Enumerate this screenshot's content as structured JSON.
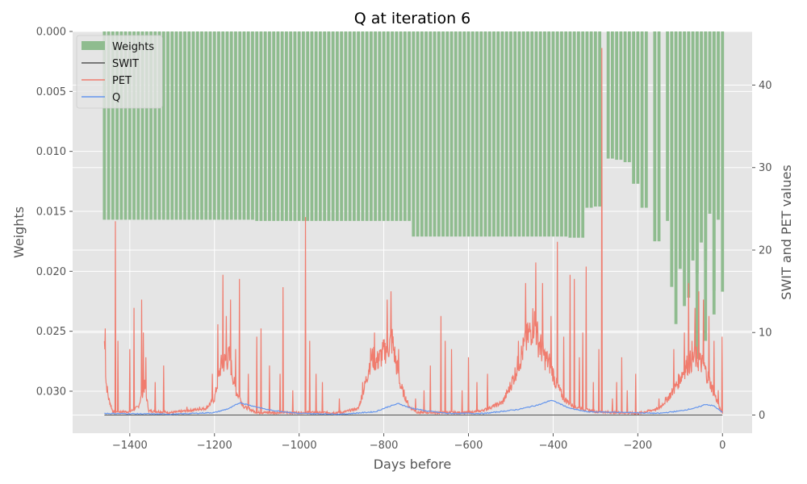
{
  "chart_data": {
    "type": "bar+line",
    "title": "Q at iteration 6",
    "xlabel": "Days before",
    "ylabel_left": "Weights",
    "ylabel_right": "SWIT and PET values",
    "xlim": [
      -1535,
      70
    ],
    "ylim_left": [
      0.0,
      0.0335
    ],
    "ylim_left_inverted": true,
    "ylim_right": [
      -2.2,
      46.5
    ],
    "x_ticks": [
      -1400,
      -1200,
      -1000,
      -800,
      -600,
      -400,
      -200,
      0
    ],
    "y_left_ticks": [
      0.0,
      0.005,
      0.01,
      0.015,
      0.02,
      0.025,
      0.03
    ],
    "y_left_tick_labels": [
      "0.000",
      "0.005",
      "0.010",
      "0.015",
      "0.020",
      "0.025",
      "0.030"
    ],
    "y_right_ticks": [
      0,
      10,
      20,
      30,
      40
    ],
    "grid": true,
    "legend_position": "top-left",
    "legend": [
      "Weights",
      "SWIT",
      "PET",
      "Q"
    ],
    "colors": {
      "background": "#e5e5e5",
      "grid": "#ffffff",
      "weights": "#8fbc8f",
      "swit": "#555555",
      "pet": "#f07c6e",
      "q": "#6495ed"
    },
    "series": [
      {
        "name": "Weights",
        "kind": "bar",
        "axis": "left",
        "note_x": "bar left edge in days; width 10 days",
        "segments": [
          {
            "x_start": -1460,
            "x_end": -1100,
            "value": 0.0157
          },
          {
            "x_start": -1100,
            "x_end": -730,
            "value": 0.0158
          },
          {
            "x_start": -730,
            "x_end": -360,
            "value": 0.0171
          },
          {
            "x_start": -360,
            "x_end": -320,
            "value": 0.0172
          },
          {
            "x_start": -320,
            "x_end": -300,
            "value": 0.0147
          },
          {
            "x_start": -300,
            "x_end": -280,
            "value": 0.0146
          },
          {
            "x_start": -270,
            "x_end": -250,
            "value": 0.0106
          },
          {
            "x_start": -250,
            "x_end": -230,
            "value": 0.0107
          },
          {
            "x_start": -230,
            "x_end": -210,
            "value": 0.0109
          },
          {
            "x_start": -210,
            "x_end": -190,
            "value": 0.0127
          },
          {
            "x_start": -190,
            "x_end": -170,
            "value": 0.0147
          },
          {
            "x_start": -160,
            "x_end": -140,
            "value": 0.0175
          },
          {
            "x_start": -130,
            "x_end": -120,
            "value": 0.0158
          },
          {
            "x_start": -120,
            "x_end": -110,
            "value": 0.0213
          },
          {
            "x_start": -110,
            "x_end": -100,
            "value": 0.0244
          },
          {
            "x_start": -100,
            "x_end": -90,
            "value": 0.0198
          },
          {
            "x_start": -90,
            "x_end": -80,
            "value": 0.0229
          },
          {
            "x_start": -80,
            "x_end": -70,
            "value": 0.0222
          },
          {
            "x_start": -70,
            "x_end": -60,
            "value": 0.0191
          },
          {
            "x_start": -60,
            "x_end": -50,
            "value": 0.0202
          },
          {
            "x_start": -50,
            "x_end": -40,
            "value": 0.0176
          },
          {
            "x_start": -40,
            "x_end": -30,
            "value": 0.0191
          },
          {
            "x_start": -30,
            "x_end": -20,
            "value": 0.0152
          },
          {
            "x_start": -20,
            "x_end": -10,
            "value": 0.0216
          },
          {
            "x_start": -10,
            "x_end": 0,
            "value": 0.0157
          }
        ],
        "special_bars": [
          {
            "x": -60,
            "value": 0.0273
          },
          {
            "x": -40,
            "value": 0.0258
          },
          {
            "x": -20,
            "value": 0.0236
          },
          {
            "x": 0,
            "value": 0.0217
          }
        ]
      },
      {
        "name": "SWIT",
        "kind": "line",
        "axis": "right",
        "x": [
          -1460,
          0
        ],
        "y": [
          0,
          0
        ]
      },
      {
        "name": "PET",
        "kind": "line",
        "axis": "right",
        "baseline_points": [
          [
            -1460,
            9.0
          ],
          [
            -1456,
            4.0
          ],
          [
            -1450,
            2.0
          ],
          [
            -1440,
            0.4
          ],
          [
            -1400,
            0.4
          ],
          [
            -1380,
            1.0
          ],
          [
            -1365,
            3.5
          ],
          [
            -1355,
            0.5
          ],
          [
            -1300,
            0.3
          ],
          [
            -1220,
            0.8
          ],
          [
            -1200,
            2.0
          ],
          [
            -1185,
            6.0
          ],
          [
            -1165,
            7.0
          ],
          [
            -1150,
            3.0
          ],
          [
            -1130,
            1.0
          ],
          [
            -1100,
            0.3
          ],
          [
            -1000,
            0.3
          ],
          [
            -900,
            0.3
          ],
          [
            -860,
            0.8
          ],
          [
            -845,
            3.5
          ],
          [
            -830,
            7.0
          ],
          [
            -815,
            6.5
          ],
          [
            -795,
            8.0
          ],
          [
            -780,
            9.0
          ],
          [
            -770,
            6.0
          ],
          [
            -760,
            3.5
          ],
          [
            -740,
            1.0
          ],
          [
            -720,
            0.3
          ],
          [
            -640,
            0.3
          ],
          [
            -600,
            0.3
          ],
          [
            -570,
            0.5
          ],
          [
            -545,
            1.0
          ],
          [
            -520,
            1.5
          ],
          [
            -505,
            3.0
          ],
          [
            -490,
            5.0
          ],
          [
            -470,
            8.0
          ],
          [
            -455,
            10.0
          ],
          [
            -445,
            11.5
          ],
          [
            -435,
            9.0
          ],
          [
            -420,
            7.0
          ],
          [
            -405,
            6.0
          ],
          [
            -395,
            4.0
          ],
          [
            -375,
            2.0
          ],
          [
            -350,
            1.0
          ],
          [
            -300,
            0.4
          ],
          [
            -200,
            0.2
          ],
          [
            -150,
            0.8
          ],
          [
            -130,
            2.0
          ],
          [
            -115,
            3.0
          ],
          [
            -100,
            4.5
          ],
          [
            -85,
            6.0
          ],
          [
            -65,
            7.0
          ],
          [
            -45,
            6.0
          ],
          [
            -30,
            4.0
          ],
          [
            -15,
            2.0
          ],
          [
            -5,
            0.6
          ],
          [
            0,
            0.3
          ]
        ],
        "spikes": [
          [
            -1458,
            10.5
          ],
          [
            -1434,
            23.5
          ],
          [
            -1428,
            9.0
          ],
          [
            -1400,
            8.0
          ],
          [
            -1390,
            13.0
          ],
          [
            -1372,
            14.0
          ],
          [
            -1368,
            10.0
          ],
          [
            -1362,
            7.0
          ],
          [
            -1340,
            4.0
          ],
          [
            -1320,
            6.0
          ],
          [
            -1265,
            1.0
          ],
          [
            -1235,
            1.0
          ],
          [
            -1205,
            5.0
          ],
          [
            -1192,
            11.0
          ],
          [
            -1180,
            17.0
          ],
          [
            -1172,
            12.0
          ],
          [
            -1162,
            14.0
          ],
          [
            -1150,
            8.0
          ],
          [
            -1141,
            16.5
          ],
          [
            -1120,
            5.0
          ],
          [
            -1100,
            9.5
          ],
          [
            -1090,
            10.5
          ],
          [
            -1070,
            6.0
          ],
          [
            -1045,
            5.0
          ],
          [
            -1038,
            15.5
          ],
          [
            -1015,
            3.0
          ],
          [
            -985,
            24.0
          ],
          [
            -975,
            9.0
          ],
          [
            -960,
            5.0
          ],
          [
            -945,
            4.0
          ],
          [
            -905,
            2.0
          ],
          [
            -850,
            4.0
          ],
          [
            -822,
            10.0
          ],
          [
            -812,
            7.5
          ],
          [
            -792,
            14.0
          ],
          [
            -783,
            15.0
          ],
          [
            -765,
            8.0
          ],
          [
            -725,
            2.0
          ],
          [
            -705,
            3.0
          ],
          [
            -690,
            6.0
          ],
          [
            -665,
            12.0
          ],
          [
            -655,
            9.0
          ],
          [
            -640,
            8.0
          ],
          [
            -615,
            3.0
          ],
          [
            -600,
            7.0
          ],
          [
            -580,
            4.0
          ],
          [
            -555,
            5.0
          ],
          [
            -482,
            9.0
          ],
          [
            -465,
            16.0
          ],
          [
            -441,
            18.5
          ],
          [
            -425,
            16.0
          ],
          [
            -405,
            12.0
          ],
          [
            -390,
            21.0
          ],
          [
            -375,
            9.5
          ],
          [
            -360,
            17.0
          ],
          [
            -350,
            16.5
          ],
          [
            -338,
            7.0
          ],
          [
            -330,
            10.0
          ],
          [
            -322,
            18.0
          ],
          [
            -305,
            4.0
          ],
          [
            -292,
            8.0
          ],
          [
            -285,
            44.5
          ],
          [
            -260,
            2.0
          ],
          [
            -250,
            4.0
          ],
          [
            -238,
            7.0
          ],
          [
            -225,
            3.0
          ],
          [
            -205,
            5.0
          ],
          [
            -150,
            2.0
          ],
          [
            -115,
            8.0
          ],
          [
            -90,
            10.0
          ],
          [
            -80,
            16.0
          ],
          [
            -72,
            9.0
          ],
          [
            -65,
            13.0
          ],
          [
            -56,
            15.0
          ],
          [
            -45,
            14.0
          ],
          [
            -32,
            12.0
          ],
          [
            -20,
            9.0
          ],
          [
            -10,
            3.0
          ],
          [
            -1,
            9.5
          ]
        ]
      },
      {
        "name": "Q",
        "kind": "line",
        "axis": "right",
        "points": [
          [
            -1460,
            0.2
          ],
          [
            -1300,
            0.1
          ],
          [
            -1200,
            0.3
          ],
          [
            -1165,
            0.8
          ],
          [
            -1140,
            1.5
          ],
          [
            -1110,
            1.1
          ],
          [
            -1070,
            0.6
          ],
          [
            -1000,
            0.2
          ],
          [
            -900,
            0.1
          ],
          [
            -820,
            0.4
          ],
          [
            -790,
            1.0
          ],
          [
            -765,
            1.4
          ],
          [
            -740,
            0.9
          ],
          [
            -700,
            0.5
          ],
          [
            -650,
            0.2
          ],
          [
            -560,
            0.2
          ],
          [
            -480,
            0.7
          ],
          [
            -430,
            1.3
          ],
          [
            -405,
            1.8
          ],
          [
            -390,
            1.5
          ],
          [
            -360,
            0.8
          ],
          [
            -320,
            0.4
          ],
          [
            -220,
            0.3
          ],
          [
            -150,
            0.2
          ],
          [
            -100,
            0.5
          ],
          [
            -60,
            0.9
          ],
          [
            -40,
            1.3
          ],
          [
            -20,
            1.1
          ],
          [
            0,
            0.3
          ]
        ]
      }
    ]
  }
}
